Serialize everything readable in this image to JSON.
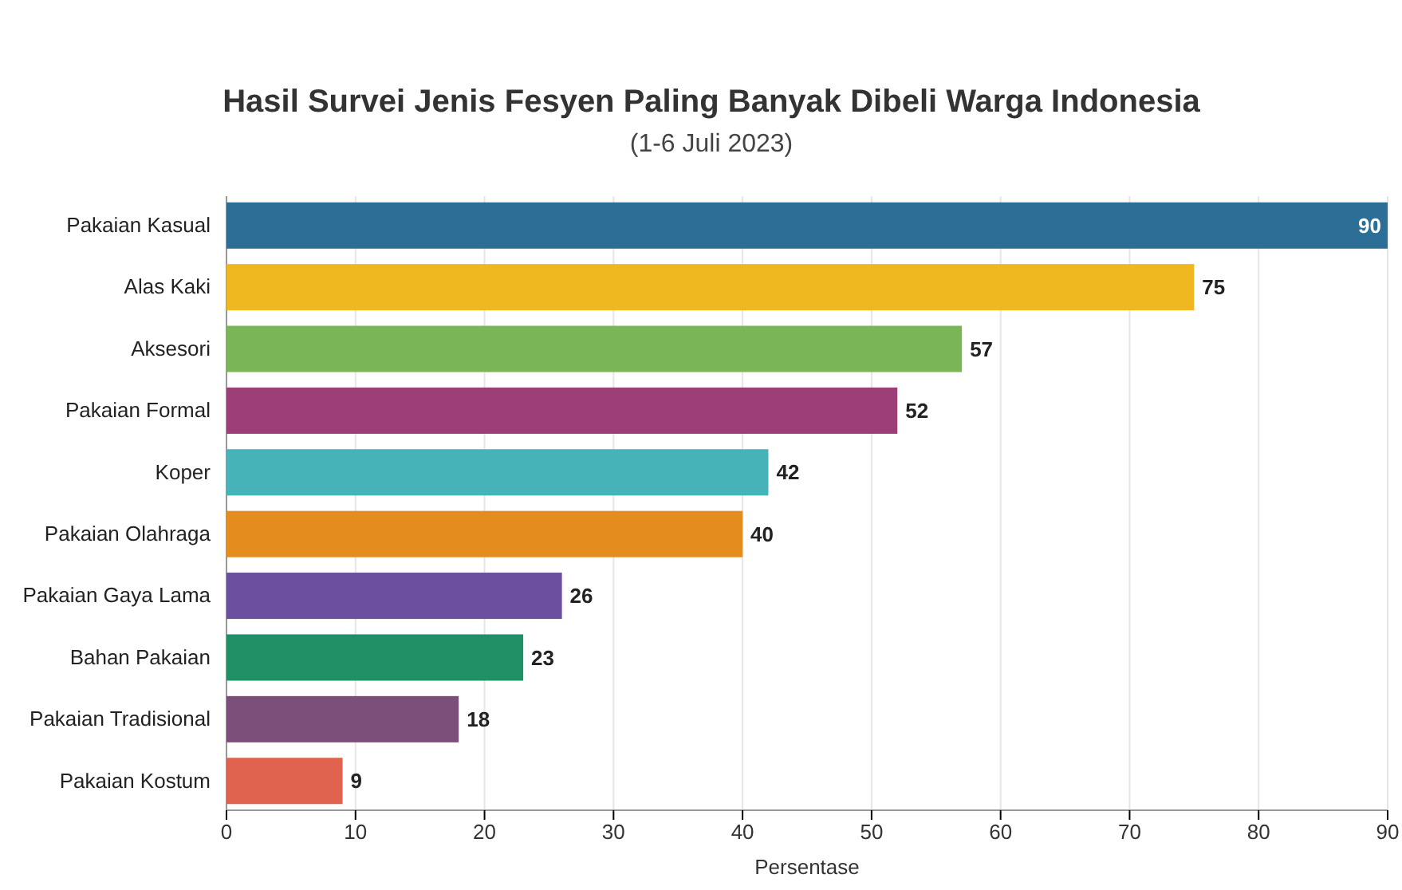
{
  "chart_data": {
    "type": "bar",
    "orientation": "horizontal",
    "title": "Hasil Survei Jenis Fesyen Paling Banyak Dibeli Warga Indonesia",
    "subtitle": "(1-6 Juli 2023)",
    "xlabel": "Persentase",
    "categories": [
      "Pakaian Kasual",
      "Alas Kaki",
      "Aksesori",
      "Pakaian Formal",
      "Koper",
      "Pakaian Olahraga",
      "Pakaian Gaya Lama",
      "Bahan Pakaian",
      "Pakaian Tradisional",
      "Pakaian Kostum"
    ],
    "values": [
      90,
      75,
      57,
      52,
      42,
      40,
      26,
      23,
      18,
      9
    ],
    "colors": [
      "#2c6e95",
      "#f0b820",
      "#7ab657",
      "#9c3f78",
      "#45b3b8",
      "#e48c1e",
      "#6a4f9e",
      "#1f8f66",
      "#7b4f7a",
      "#e0634f"
    ],
    "xlim": [
      0,
      90
    ],
    "xticks": [
      0,
      10,
      20,
      30,
      40,
      50,
      60,
      70,
      80,
      90
    ],
    "grid": "x",
    "data_labels": true
  }
}
